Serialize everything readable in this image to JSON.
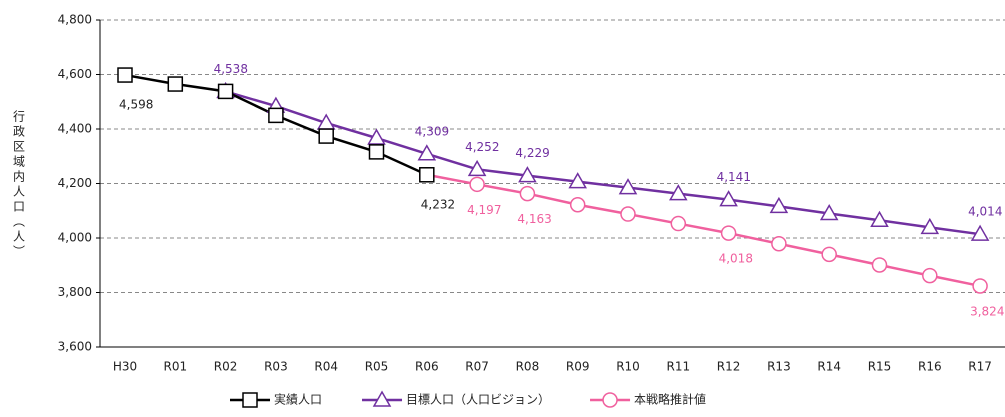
{
  "chart_data": {
    "type": "line",
    "y_axis_label": "行政区域内人口（人）",
    "categories": [
      "H30",
      "R01",
      "R02",
      "R03",
      "R04",
      "R05",
      "R06",
      "R07",
      "R08",
      "R09",
      "R10",
      "R11",
      "R12",
      "R13",
      "R14",
      "R15",
      "R16",
      "R17"
    ],
    "series": [
      {
        "name": "実績人口",
        "color": "#000000",
        "marker": "square",
        "values": [
          4598,
          4565,
          4538,
          4450,
          4374,
          4316,
          4232,
          null,
          null,
          null,
          null,
          null,
          null,
          null,
          null,
          null,
          null,
          null
        ],
        "value_labels": [
          "4,598",
          null,
          null,
          null,
          null,
          null,
          "4,232",
          null,
          null,
          null,
          null,
          null,
          null,
          null,
          null,
          null,
          null,
          null
        ]
      },
      {
        "name": "目標人口（人口ビジョン）",
        "color": "#7030a0",
        "marker": "triangle",
        "values": [
          null,
          null,
          4538,
          4484,
          4422,
          4367,
          4309,
          4252,
          4229,
          4207,
          4185,
          4163,
          4141,
          4116,
          4090,
          4065,
          4039,
          4014
        ],
        "value_labels": [
          null,
          null,
          "4,538",
          null,
          null,
          null,
          "4,309",
          "4,252",
          "4,229",
          null,
          null,
          null,
          "4,141",
          null,
          null,
          null,
          null,
          "4,014"
        ]
      },
      {
        "name": "本戦略推計値",
        "color": "#f0609e",
        "marker": "circle",
        "values": [
          null,
          null,
          null,
          null,
          null,
          null,
          4232,
          4197,
          4163,
          4122,
          4088,
          4053,
          4018,
          3979,
          3940,
          3901,
          3862,
          3824
        ],
        "value_labels": [
          null,
          null,
          null,
          null,
          null,
          null,
          null,
          "4,197",
          "4,163",
          null,
          null,
          null,
          "4,018",
          null,
          null,
          null,
          null,
          "3,824"
        ]
      }
    ],
    "ylim": [
      3600,
      4800
    ],
    "yticks": [
      {
        "value": 3600,
        "label": "3,600"
      },
      {
        "value": 3800,
        "label": "3,800"
      },
      {
        "value": 4000,
        "label": "4,000"
      },
      {
        "value": 4200,
        "label": "4,200"
      },
      {
        "value": 4400,
        "label": "4,400"
      },
      {
        "value": 4600,
        "label": "4,600"
      },
      {
        "value": 4800,
        "label": "4,800"
      }
    ],
    "grid": true,
    "legend": "bottom"
  }
}
